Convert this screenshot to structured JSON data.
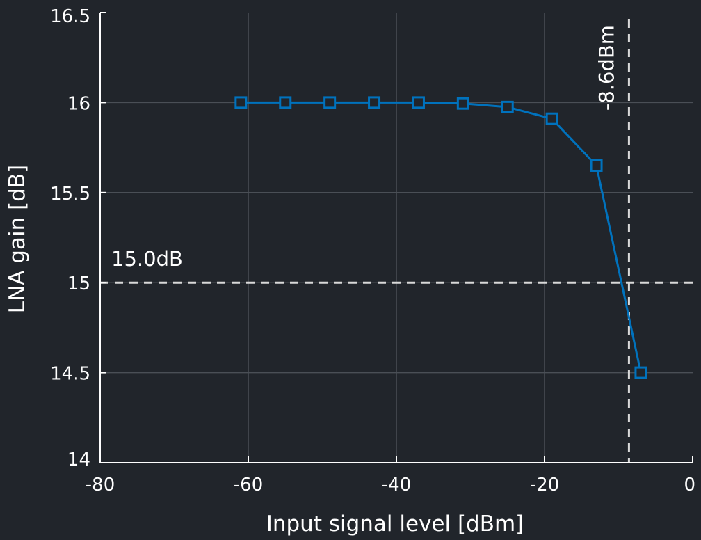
{
  "chart_data": {
    "type": "line",
    "xlabel": "Input signal level [dBm]",
    "ylabel": "LNA gain [dB]",
    "xlim": [
      -80,
      0
    ],
    "ylim": [
      14,
      16.5
    ],
    "xticks": [
      -80,
      -60,
      -40,
      -20,
      0
    ],
    "yticks": [
      14,
      14.5,
      15,
      15.5,
      16,
      16.5
    ],
    "xtick_labels": [
      "-80",
      "-60",
      "-40",
      "-20",
      "0"
    ],
    "ytick_labels": [
      "14",
      "14.5",
      "15",
      "15.5",
      "16",
      "16.5"
    ],
    "grid": true,
    "series": [
      {
        "marker": "square",
        "color": "#0072bd",
        "x": [
          -61,
          -55,
          -49,
          -43,
          -37,
          -31,
          -25,
          -19,
          -13,
          -7
        ],
        "y": [
          16.0,
          16.0,
          16.0,
          16.0,
          16.0,
          15.995,
          15.975,
          15.91,
          15.65,
          14.5
        ]
      }
    ],
    "reference_lines": [
      {
        "orientation": "horizontal",
        "value": 15.0,
        "label": "15.0dB",
        "style": "dashed",
        "color": "#d9d9d9"
      },
      {
        "orientation": "vertical",
        "value": -8.6,
        "label": "-8.6dBm",
        "style": "dashed",
        "color": "#d9d9d9"
      }
    ],
    "colors": {
      "background": "#21252b",
      "axes": "#ffffff",
      "grid": "#4a4f56",
      "text": "#ffffff"
    }
  }
}
